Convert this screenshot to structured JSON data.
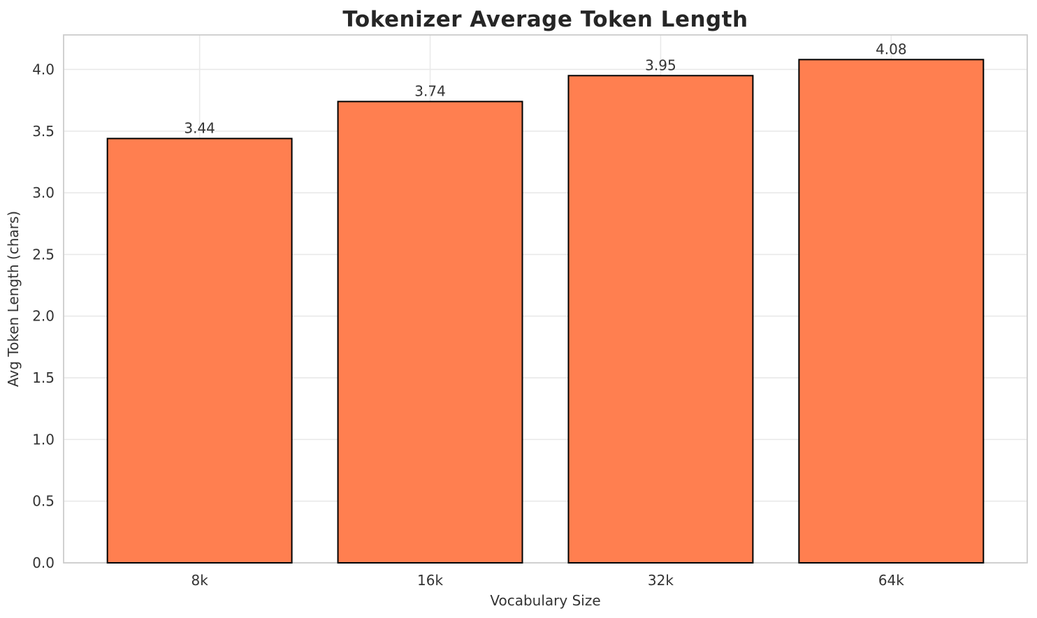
{
  "chart_data": {
    "type": "bar",
    "title": "Tokenizer Average Token Length",
    "xlabel": "Vocabulary Size",
    "ylabel": "Avg Token Length (chars)",
    "categories": [
      "8k",
      "16k",
      "32k",
      "64k"
    ],
    "values": [
      3.44,
      3.74,
      3.95,
      4.08
    ],
    "value_labels": [
      "3.44",
      "3.74",
      "3.95",
      "4.08"
    ],
    "yticks": [
      0.0,
      0.5,
      1.0,
      1.5,
      2.0,
      2.5,
      3.0,
      3.5,
      4.0
    ],
    "ytick_labels": [
      "0.0",
      "0.5",
      "1.0",
      "1.5",
      "2.0",
      "2.5",
      "3.0",
      "3.5",
      "4.0"
    ],
    "ylim": [
      0,
      4.28
    ],
    "grid": true,
    "legend": "none",
    "colors": {
      "bar_fill": "#FF7F50",
      "bar_edge": "#000000",
      "grid_line": "#e9e9e9",
      "spine": "#cccccc",
      "tick_text": "#333333",
      "axis_label_text": "#333333",
      "value_label_text": "#333333",
      "title_text": "#262626",
      "background": "#ffffff"
    }
  }
}
